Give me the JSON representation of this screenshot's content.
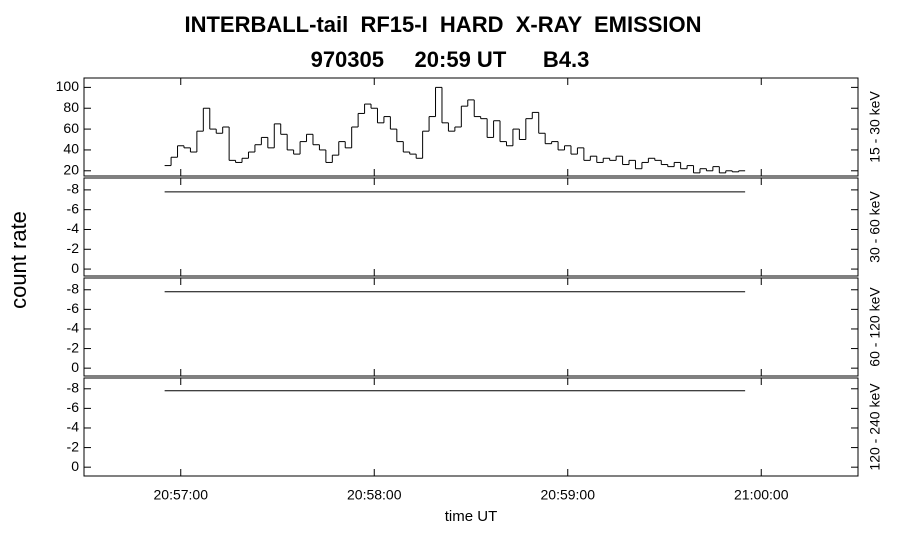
{
  "chart_data": [
    {
      "type": "histogram",
      "title": "INTERBALL-tail  RF15-I  HARD  X-RAY  EMISSION",
      "subtitle": "970305     20:59 UT      B4.3",
      "ylabel": "count rate",
      "channel": "15 - 30 keV",
      "color": "#000000",
      "xlim": [
        75390,
        75630
      ],
      "ylim": [
        15,
        109
      ],
      "yticks": [
        20,
        40,
        60,
        80,
        100
      ],
      "bins": [
        75415,
        75417,
        75419,
        75421,
        75423,
        75425,
        75427,
        75429,
        75431,
        75433,
        75435,
        75437,
        75439,
        75441,
        75443,
        75445,
        75447,
        75449,
        75451,
        75453,
        75455,
        75457,
        75459,
        75461,
        75463,
        75465,
        75467,
        75469,
        75471,
        75473,
        75475,
        75477,
        75479,
        75481,
        75483,
        75485,
        75487,
        75489,
        75491,
        75493,
        75495,
        75497,
        75499,
        75501,
        75503,
        75505,
        75507,
        75509,
        75511,
        75513,
        75515,
        75517,
        75519,
        75521,
        75523,
        75525,
        75527,
        75529,
        75531,
        75533,
        75535,
        75537,
        75539,
        75541,
        75543,
        75545,
        75547,
        75549,
        75551,
        75553,
        75555,
        75557,
        75559,
        75561,
        75563,
        75565,
        75567,
        75569,
        75571,
        75573,
        75575,
        75577,
        75579,
        75581,
        75583,
        75585,
        75587,
        75589,
        75591,
        75593,
        75595
      ],
      "values": [
        25,
        33,
        44,
        42,
        38,
        58,
        80,
        60,
        56,
        62,
        30,
        28,
        32,
        38,
        45,
        52,
        42,
        65,
        55,
        40,
        36,
        48,
        55,
        45,
        40,
        28,
        35,
        48,
        42,
        62,
        75,
        84,
        80,
        66,
        72,
        60,
        48,
        38,
        36,
        32,
        58,
        72,
        100,
        66,
        58,
        62,
        82,
        88,
        72,
        70,
        52,
        68,
        48,
        44,
        60,
        50,
        70,
        76,
        56,
        46,
        48,
        40,
        44,
        36,
        42,
        30,
        34,
        28,
        32,
        30,
        34,
        26,
        30,
        22,
        28,
        32,
        30,
        26,
        24,
        28,
        22,
        25,
        18,
        22,
        20,
        24,
        18,
        20,
        19,
        20
      ]
    },
    {
      "type": "line",
      "channel": "30 - 60 keV",
      "color": "#000000",
      "xlim": [
        75390,
        75630
      ],
      "ylim": [
        0.7,
        -9.2
      ],
      "yticks": [
        -8,
        -6,
        -4,
        -2,
        0
      ],
      "x": [
        75415,
        75595
      ],
      "values": [
        -7.8,
        -7.8
      ]
    },
    {
      "type": "line",
      "channel": "60 - 120 keV",
      "color": "#000000",
      "xlim": [
        75390,
        75630
      ],
      "ylim": [
        0.8,
        -9.2
      ],
      "yticks": [
        -8,
        -6,
        -4,
        -2,
        0
      ],
      "x": [
        75415,
        75595
      ],
      "values": [
        -7.8,
        -7.8
      ]
    },
    {
      "type": "line",
      "channel": "120 - 240 keV",
      "color": "#000000",
      "xlim": [
        75390,
        75630
      ],
      "ylim": [
        0.9,
        -9.1
      ],
      "yticks": [
        -8,
        -6,
        -4,
        -2,
        0
      ],
      "x": [
        75415,
        75595
      ],
      "values": [
        -7.8,
        -7.8
      ],
      "xlabel": "time UT",
      "xticks": [
        {
          "value": 75420,
          "label": "20:57:00"
        },
        {
          "value": 75480,
          "label": "20:58:00"
        },
        {
          "value": 75540,
          "label": "20:59:00"
        },
        {
          "value": 75600,
          "label": "21:00:00"
        }
      ]
    }
  ]
}
